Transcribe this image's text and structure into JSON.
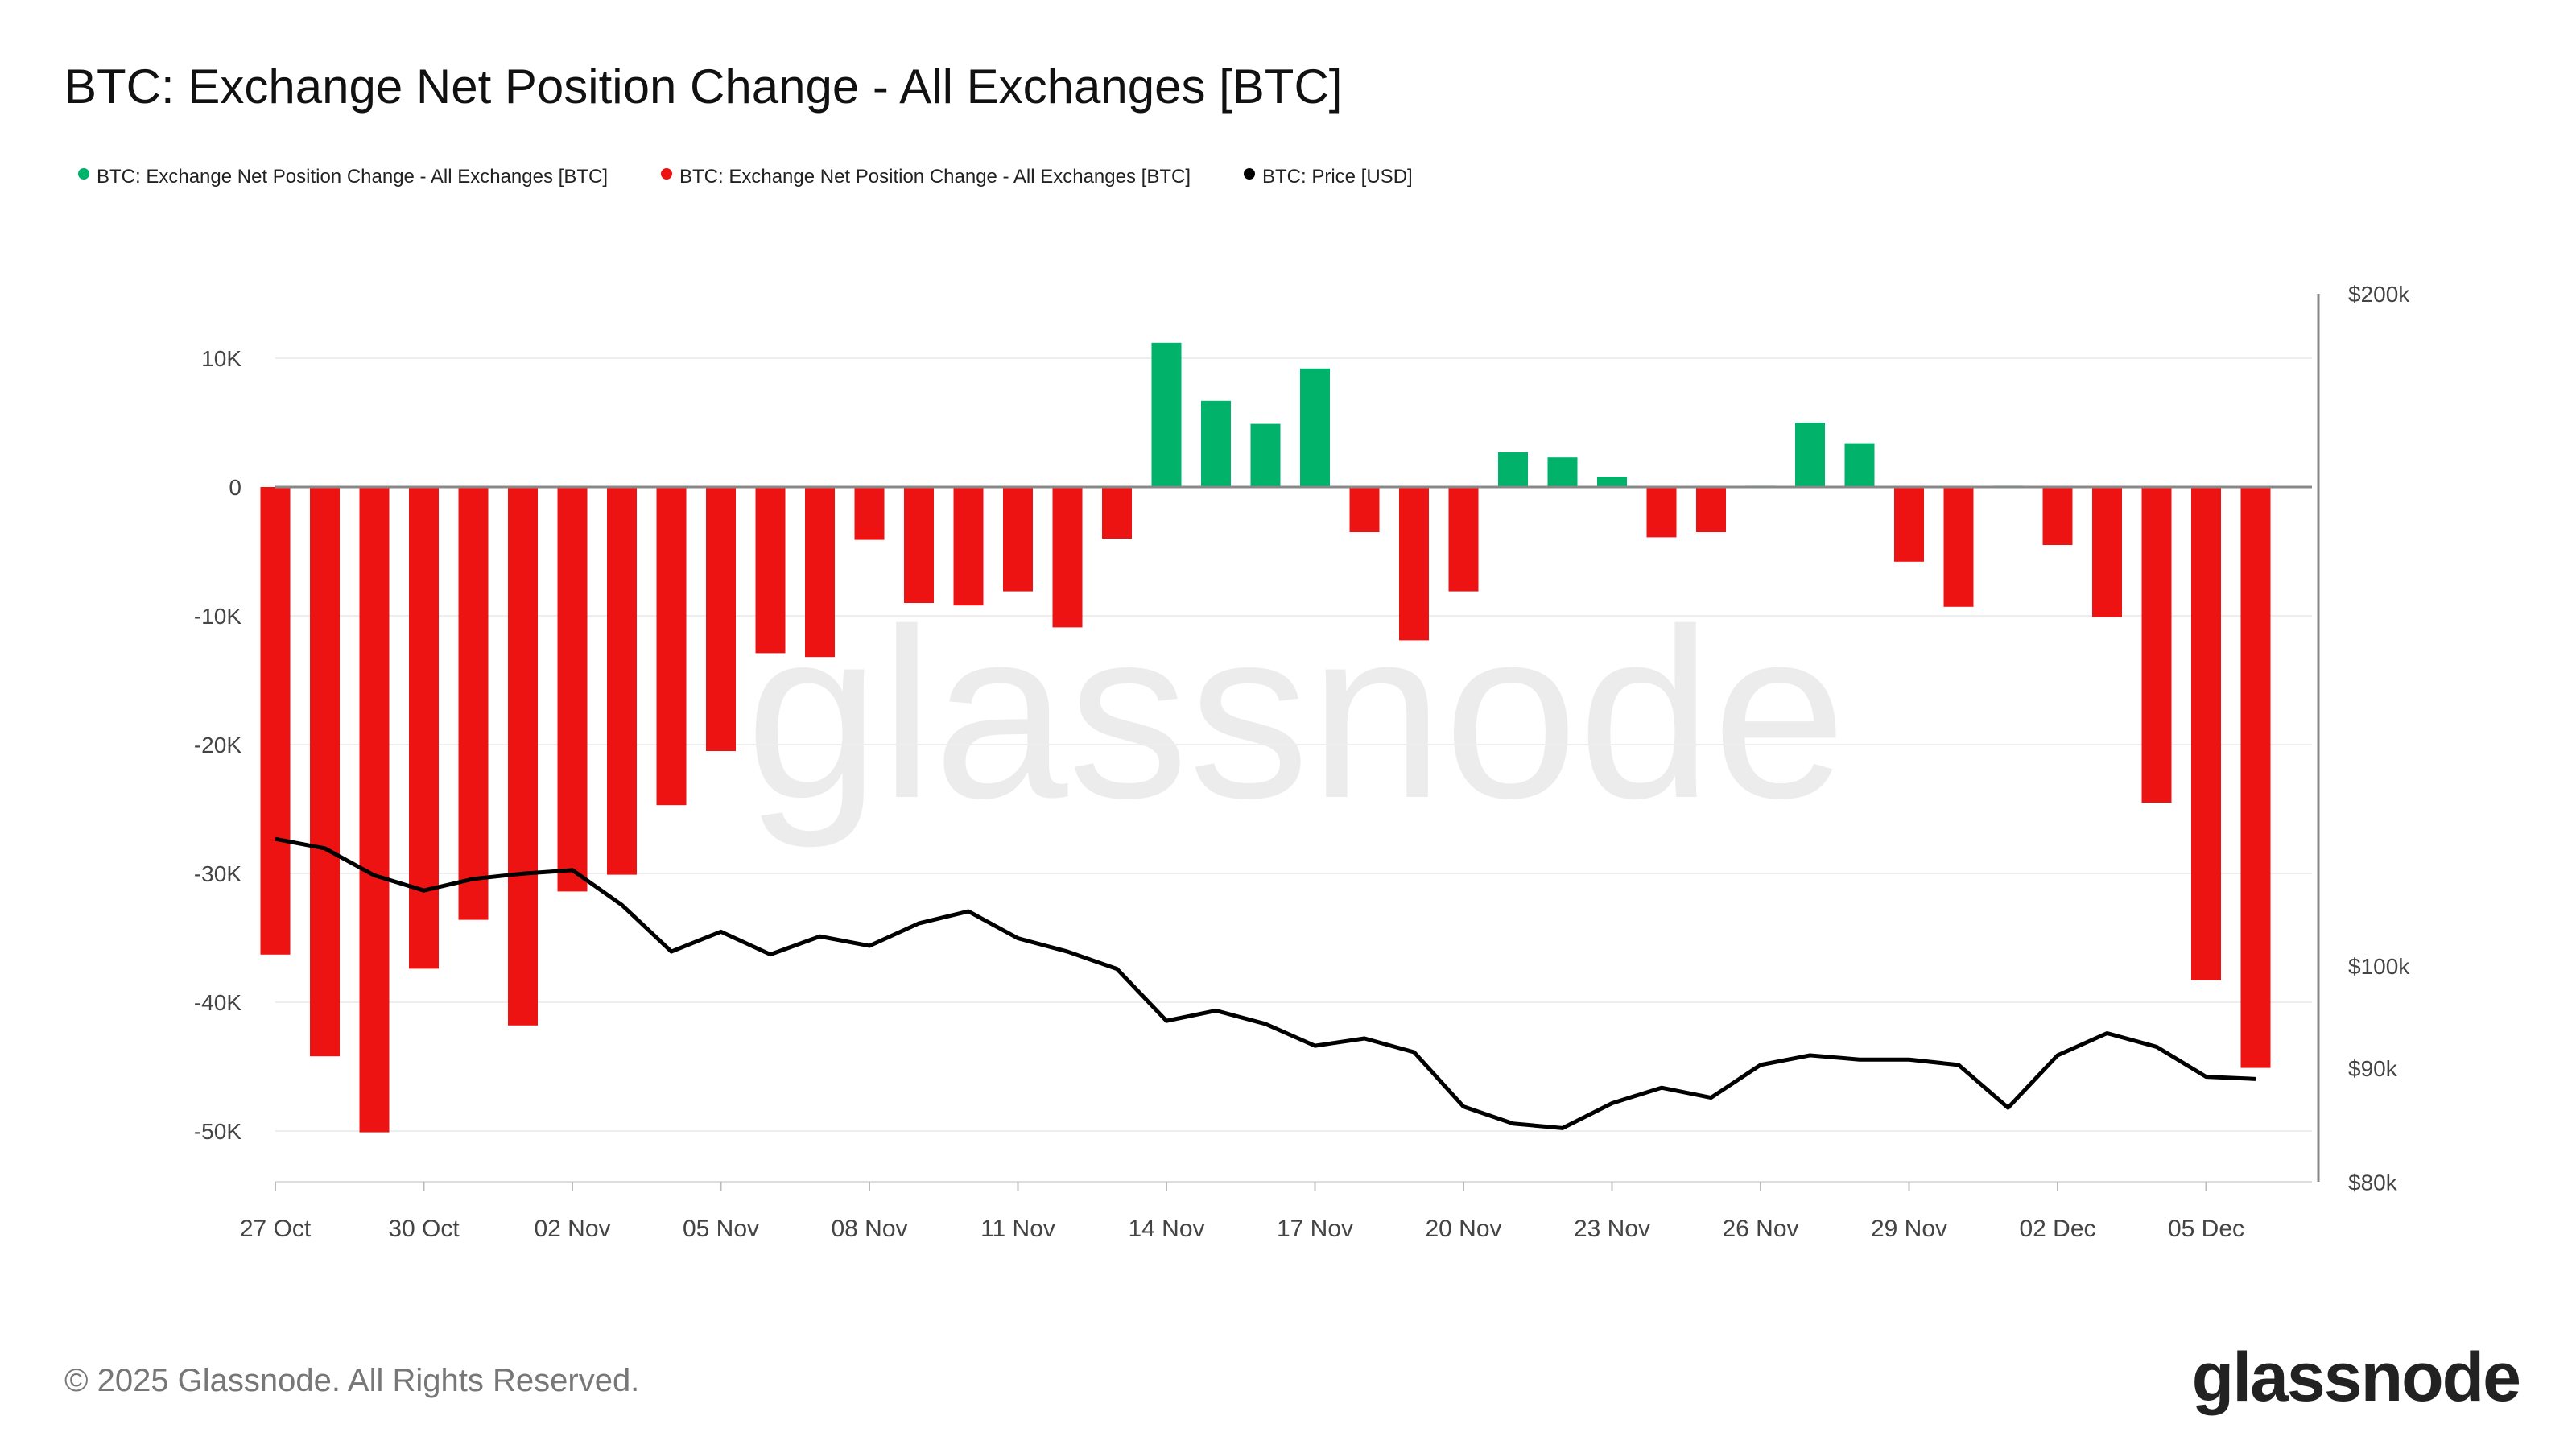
{
  "chart_data": {
    "type": "bar",
    "title": "BTC: Exchange Net Position Change - All Exchanges [BTC]",
    "legend": [
      {
        "name": "BTC: Exchange Net Position Change - All Exchanges [BTC]",
        "color": "#00b26a"
      },
      {
        "name": "BTC: Exchange Net Position Change - All Exchanges [BTC]",
        "color": "#ee1313"
      },
      {
        "name": "BTC: Price [USD]",
        "color": "#000000"
      }
    ],
    "legend_placement": "top-left",
    "positive_color": "#00b26a",
    "negative_color": "#ee1313",
    "price_color": "#000000",
    "x": [
      "27 Oct",
      "28 Oct",
      "29 Oct",
      "30 Oct",
      "31 Oct",
      "01 Nov",
      "02 Nov",
      "03 Nov",
      "04 Nov",
      "05 Nov",
      "06 Nov",
      "07 Nov",
      "08 Nov",
      "09 Nov",
      "10 Nov",
      "11 Nov",
      "12 Nov",
      "13 Nov",
      "14 Nov",
      "15 Nov",
      "16 Nov",
      "17 Nov",
      "18 Nov",
      "19 Nov",
      "20 Nov",
      "21 Nov",
      "22 Nov",
      "23 Nov",
      "24 Nov",
      "25 Nov",
      "26 Nov",
      "27 Nov",
      "28 Nov",
      "29 Nov",
      "30 Nov",
      "01 Dec",
      "02 Dec",
      "03 Dec",
      "04 Dec",
      "05 Dec",
      "06 Dec"
    ],
    "x_tick_labels": [
      "27 Oct",
      "30 Oct",
      "02 Nov",
      "05 Nov",
      "08 Nov",
      "11 Nov",
      "14 Nov",
      "17 Nov",
      "20 Nov",
      "23 Nov",
      "26 Nov",
      "29 Nov",
      "02 Dec",
      "05 Dec"
    ],
    "series": [
      {
        "axis": "left",
        "type": "bar",
        "values": [
          -36300,
          -44200,
          -50100,
          -37400,
          -33600,
          -41800,
          -31400,
          -30100,
          -24700,
          -20500,
          -12900,
          -13200,
          -4100,
          -9000,
          -9200,
          -8100,
          -10900,
          -4000,
          11200,
          6700,
          4900,
          9200,
          -3500,
          -11900,
          -8100,
          2700,
          2300,
          800,
          -3900,
          -3500,
          100,
          5000,
          3400,
          -5800,
          -9300,
          100,
          -4500,
          -10100,
          -24500,
          -38300,
          -45100
        ]
      },
      {
        "axis": "right",
        "type": "line",
        "values": [
          114000,
          112900,
          109800,
          108100,
          109400,
          110000,
          110400,
          106500,
          101500,
          103600,
          101200,
          103100,
          102100,
          104500,
          105800,
          102900,
          101500,
          99700,
          94500,
          95500,
          94200,
          92100,
          92800,
          91500,
          86500,
          85000,
          84600,
          86800,
          88200,
          87300,
          90300,
          91200,
          90800,
          90800,
          90300,
          86400,
          91200,
          93300,
          92000,
          89200,
          89000
        ]
      }
    ],
    "y_left": {
      "ticks": [
        10000,
        0,
        -10000,
        -20000,
        -30000,
        -40000,
        -50000
      ],
      "tick_labels": [
        "10K",
        "0",
        "-10K",
        "-20K",
        "-30K",
        "-40K",
        "-50K"
      ],
      "range": [
        -54000,
        15000
      ],
      "grid": true
    },
    "y_right": {
      "scale": "log",
      "ticks": [
        200000,
        100000,
        90000,
        80000
      ],
      "tick_labels": [
        "$200k",
        "$100k",
        "$90k",
        "$80k"
      ],
      "range": [
        80000,
        200000
      ]
    }
  },
  "watermark": "glassnode",
  "footer": {
    "copyright": "© 2025 Glassnode. All Rights Reserved.",
    "logo": "glassnode"
  }
}
